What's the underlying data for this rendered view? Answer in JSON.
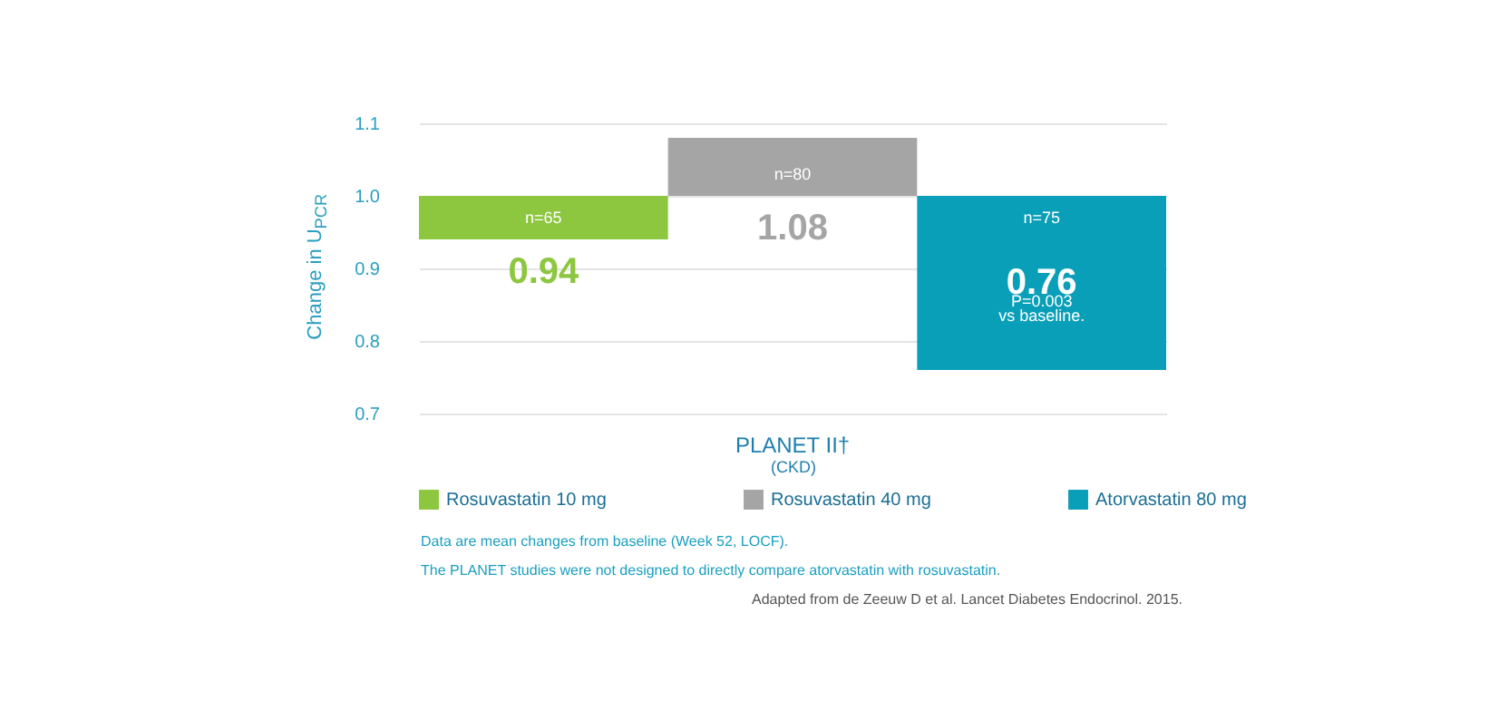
{
  "chart_data": {
    "type": "bar",
    "ylabel": "Change in U$_{PCR}$",
    "xlabel": "(CKD)",
    "categories": [
      "PLANET II†"
    ],
    "series": [
      {
        "name": "Rosuvastatin 10 mg",
        "color": "#8dc63f",
        "base": [
          1.0
        ],
        "values": [
          -0.06
        ],
        "value_labels": [
          "0.94"
        ]
      },
      {
        "name": "Rosuvastatin 40 mg",
        "color": "#a6a5a5",
        "base": [
          1.0
        ],
        "values": [
          0.08
        ],
        "value_labels": [
          "1.08"
        ]
      },
      {
        "name": "Atorvastatin 80 mg",
        "color": "#0a9fb8",
        "base": [
          1.0
        ],
        "values": [
          -0.24
        ],
        "value_labels": [
          "0.76"
        ]
      }
    ],
    "ylim": [
      0.7,
      1.1
    ],
    "yticks": [
      0.7,
      0.8,
      0.9,
      {
        "value": 1.0,
        "label": "1.0"
      },
      1.1
    ],
    "grid": "y",
    "legend": "bottom",
    "annotations": [
      "n=65",
      "n=80",
      "n=75",
      "P=0.003",
      "vs baseline.",
      "Data are mean changes from baseline (Week 52, LOCF).",
      "The PLANET studies were not designed to directly compare atorvastatin with rosuvastatin.",
      "Adapted from de Zeeuw D et al. Lancet Diabetes Endocrinol. 2015."
    ]
  }
}
